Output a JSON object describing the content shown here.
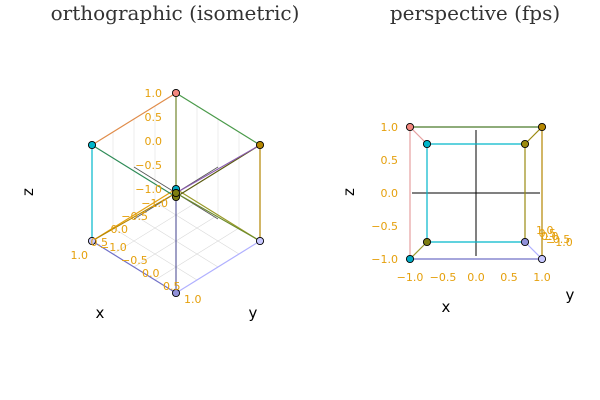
{
  "colors": {
    "tick": "#e5a00d",
    "axis_label": "#1b6b1b",
    "title": "#333333",
    "marker_stroke": "#000000",
    "grid": "#d9d9d9"
  },
  "chart_data": [
    {
      "type": "scatter",
      "title": "orthographic (isometric)",
      "projection": "orthographic",
      "view": "isometric",
      "xlabel": "x",
      "ylabel": "y",
      "zlabel": "z",
      "xlim": [
        -1,
        1
      ],
      "ylim": [
        -1,
        1
      ],
      "zlim": [
        -1,
        1
      ],
      "ticks": [
        -1.0,
        -0.5,
        0.0,
        0.5,
        1.0
      ],
      "tick_labels": [
        "−1.0",
        "−0.5",
        "0.0",
        "0.5",
        "1.0"
      ],
      "grid": true,
      "points": [
        {
          "x": -1,
          "y": -1,
          "z": -1,
          "color": "#00a9c2"
        },
        {
          "x": 1,
          "y": -1,
          "z": -1,
          "color": "#c8c8ff"
        },
        {
          "x": -1,
          "y": 1,
          "z": -1,
          "color": "#c8c8ff"
        },
        {
          "x": 1,
          "y": 1,
          "z": -1,
          "color": "#9090d8"
        },
        {
          "x": -1,
          "y": -1,
          "z": 1,
          "color": "#f2877e"
        },
        {
          "x": 1,
          "y": -1,
          "z": 1,
          "color": "#00b6ca"
        },
        {
          "x": -1,
          "y": 1,
          "z": 1,
          "color": "#b58600"
        },
        {
          "x": 1,
          "y": 1,
          "z": 1,
          "color": "#7d7d10"
        }
      ],
      "edges": [
        {
          "from": 0,
          "to": 1,
          "color": "#e5a00d"
        },
        {
          "from": 0,
          "to": 2,
          "color": "#9a9a2a"
        },
        {
          "from": 0,
          "to": 4,
          "color": "#e5a0a0"
        },
        {
          "from": 1,
          "to": 3,
          "color": "#7070c8"
        },
        {
          "from": 1,
          "to": 5,
          "color": "#00b6ca"
        },
        {
          "from": 2,
          "to": 3,
          "color": "#b0b0ff"
        },
        {
          "from": 2,
          "to": 6,
          "color": "#b58600"
        },
        {
          "from": 3,
          "to": 7,
          "color": "#6060a0"
        },
        {
          "from": 4,
          "to": 5,
          "color": "#e08c4a"
        },
        {
          "from": 4,
          "to": 6,
          "color": "#4a9a4a"
        },
        {
          "from": 5,
          "to": 7,
          "color": "#2e8b57"
        },
        {
          "from": 6,
          "to": 7,
          "color": "#5a5a10"
        }
      ]
    },
    {
      "type": "scatter",
      "title": "perspective (fps)",
      "projection": "perspective",
      "view": "fps",
      "xlabel": "x",
      "ylabel": "y",
      "zlabel": "z",
      "xlim": [
        -1,
        1
      ],
      "ylim": [
        -1,
        1
      ],
      "zlim": [
        -1,
        1
      ],
      "ticks": [
        -1.0,
        -0.5,
        0.0,
        0.5,
        1.0
      ],
      "tick_labels": [
        "−1.0",
        "−0.5",
        "0.0",
        "0.5",
        "1.0"
      ],
      "grid": false,
      "points": [
        {
          "x": -1,
          "y": -1,
          "z": -1,
          "color": "#00a9c2"
        },
        {
          "x": 1,
          "y": -1,
          "z": -1,
          "color": "#c8c8ff"
        },
        {
          "x": -1,
          "y": 1,
          "z": -1,
          "color": "#7d7d10"
        },
        {
          "x": 1,
          "y": 1,
          "z": -1,
          "color": "#9090d8"
        },
        {
          "x": -1,
          "y": -1,
          "z": 1,
          "color": "#f2877e"
        },
        {
          "x": 1,
          "y": -1,
          "z": 1,
          "color": "#b58600"
        },
        {
          "x": -1,
          "y": 1,
          "z": 1,
          "color": "#00b6ca"
        },
        {
          "x": 1,
          "y": 1,
          "z": 1,
          "color": "#9a8a10"
        }
      ],
      "edges": [
        {
          "from": 0,
          "to": 1,
          "color": "#7070c8"
        },
        {
          "from": 0,
          "to": 2,
          "color": "#9a9a2a"
        },
        {
          "from": 0,
          "to": 4,
          "color": "#e5a0a0"
        },
        {
          "from": 1,
          "to": 3,
          "color": "#b0b0ff"
        },
        {
          "from": 1,
          "to": 5,
          "color": "#b58600"
        },
        {
          "from": 2,
          "to": 3,
          "color": "#00b6ca"
        },
        {
          "from": 2,
          "to": 6,
          "color": "#00b6ca"
        },
        {
          "from": 3,
          "to": 7,
          "color": "#9a8a10"
        },
        {
          "from": 4,
          "to": 5,
          "color": "#4a7a2a"
        },
        {
          "from": 4,
          "to": 6,
          "color": "#e5a0a0"
        },
        {
          "from": 5,
          "to": 7,
          "color": "#9a8a10"
        },
        {
          "from": 6,
          "to": 7,
          "color": "#00b6ca"
        }
      ]
    }
  ]
}
